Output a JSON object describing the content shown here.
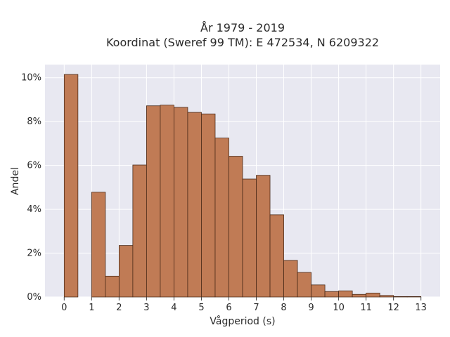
{
  "chart_data": {
    "type": "bar",
    "title_line1": "År 1979 - 2019",
    "title_line2": "Koordinat (Sweref 99 TM): E 472534, N 6209322",
    "xlabel": "Vågperiod (s)",
    "ylabel": "Andel",
    "bin_width": 0.5,
    "bins_start": [
      0,
      0.5,
      1,
      1.5,
      2,
      2.5,
      3,
      3.5,
      4,
      4.5,
      5,
      5.5,
      6,
      6.5,
      7,
      7.5,
      8,
      8.5,
      9,
      9.5,
      10,
      10.5,
      11,
      11.5,
      12,
      12.5
    ],
    "values": [
      10.15,
      0,
      4.78,
      0.95,
      2.35,
      6.02,
      8.72,
      8.75,
      8.65,
      8.42,
      8.35,
      7.25,
      6.42,
      5.38,
      5.55,
      3.75,
      1.67,
      1.12,
      0.55,
      0.25,
      0.28,
      0.12,
      0.18,
      0.07,
      0.02,
      0.02
    ],
    "xticks": [
      "0",
      "1",
      "2",
      "3",
      "4",
      "5",
      "6",
      "7",
      "8",
      "9",
      "10",
      "11",
      "12",
      "13"
    ],
    "yticks": [
      "0%",
      "2%",
      "4%",
      "6%",
      "8%",
      "10%"
    ],
    "xlim": [
      -0.7,
      13.7
    ],
    "ylim": [
      0,
      10.6
    ],
    "grid": true,
    "colors": {
      "bar_fill": "#c07b55",
      "bar_stroke": "#4a2a18",
      "plot_bg": "#e8e8f1",
      "grid": "#ffffff"
    }
  }
}
